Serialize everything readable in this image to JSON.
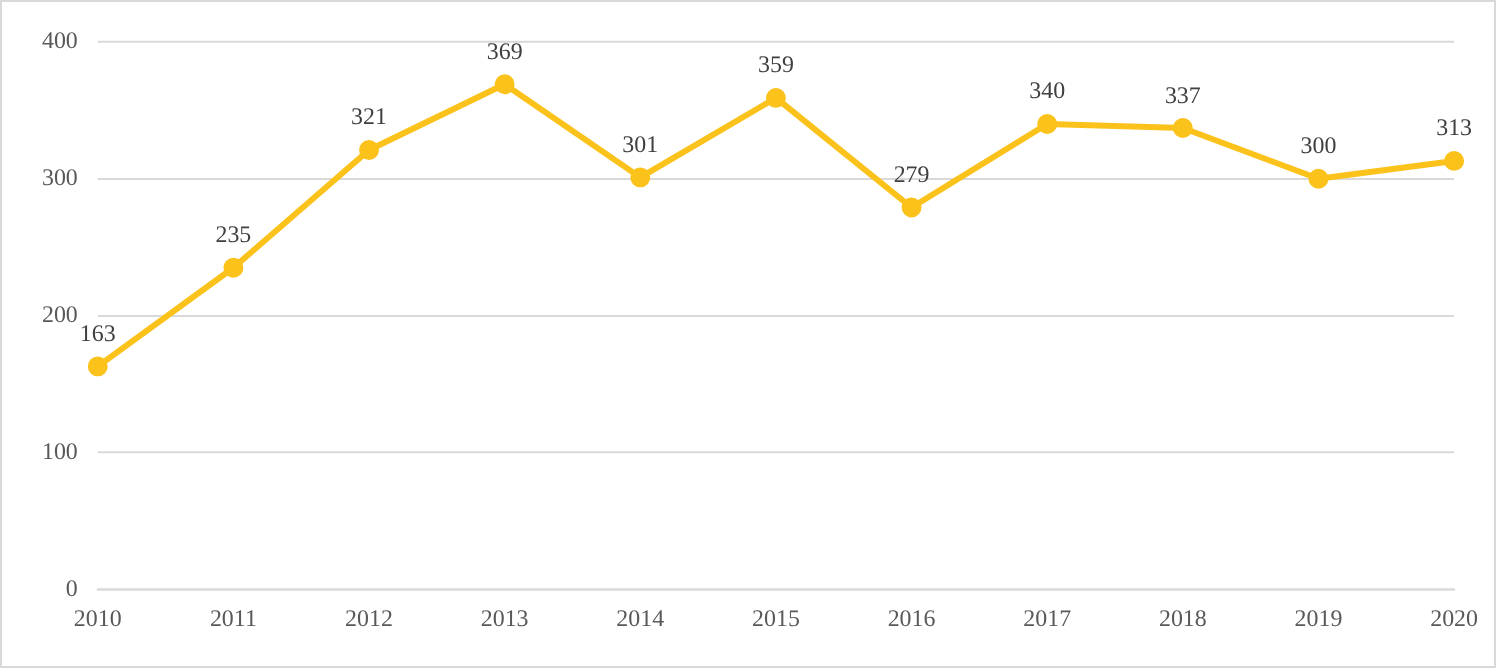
{
  "chart_data": {
    "type": "line",
    "categories": [
      "2010",
      "2011",
      "2012",
      "2013",
      "2014",
      "2015",
      "2016",
      "2017",
      "2018",
      "2019",
      "2020"
    ],
    "series": [
      {
        "color": "#fbc21b",
        "values": [
          163,
          235,
          321,
          369,
          301,
          359,
          279,
          340,
          337,
          300,
          313
        ]
      }
    ],
    "ylim": [
      0,
      400
    ],
    "yticks": [
      0,
      100,
      200,
      300,
      400
    ],
    "grid": "y",
    "legend": false,
    "marker": "circle",
    "line_style": "solid",
    "data_labels": true
  }
}
